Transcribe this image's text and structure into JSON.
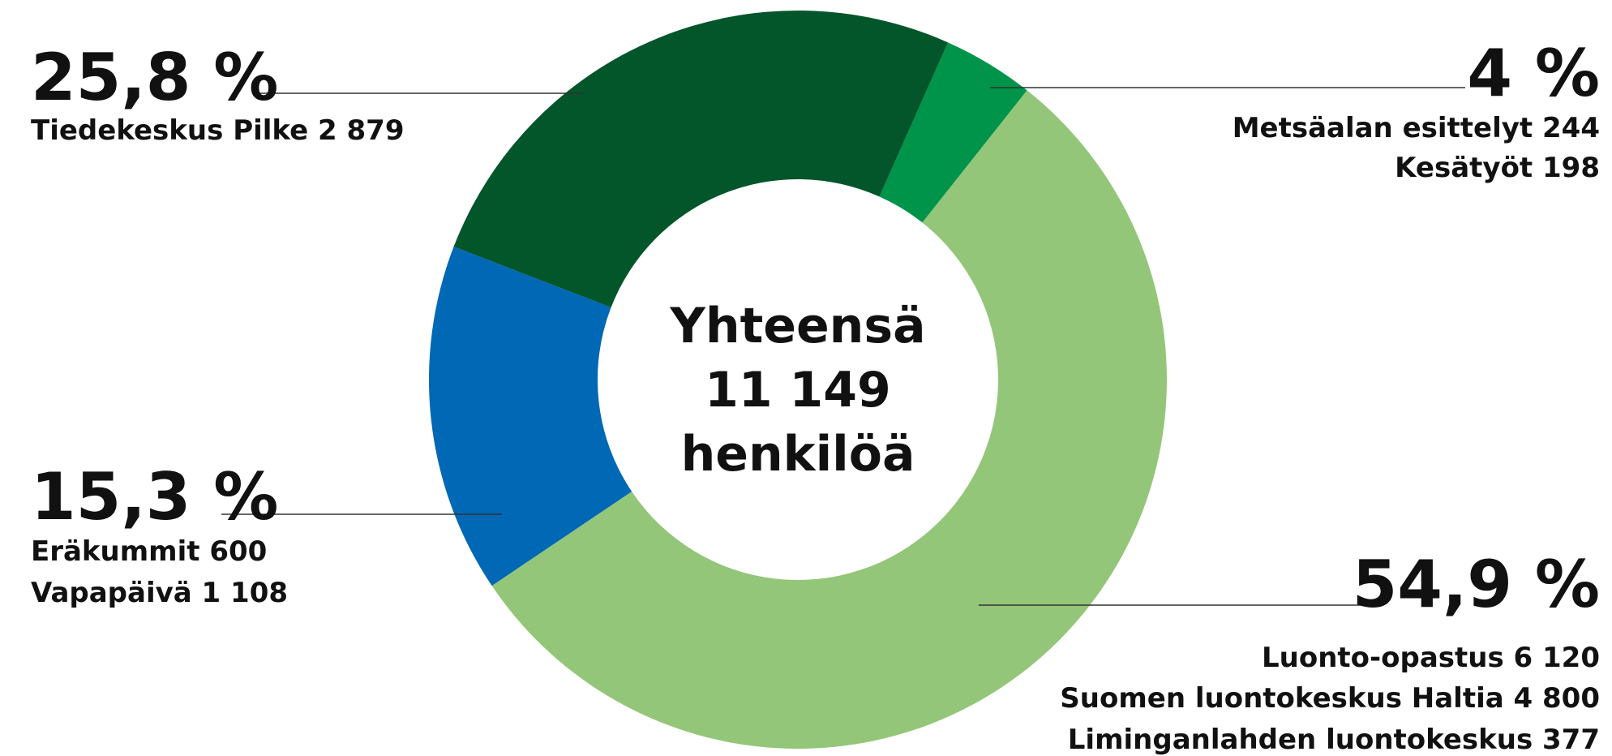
{
  "chart_data": {
    "type": "donut",
    "values": [
      4,
      54.9,
      15.3,
      25.8
    ],
    "value_labels": [
      "4 %",
      "54,9 %",
      "15,3 %",
      "25,8 %"
    ],
    "colors": [
      "#00934a",
      "#94c679",
      "#0068b4",
      "#03552a"
    ],
    "details": [
      [
        "Metsäalan esittelyt 244",
        "Kesätyöt 198"
      ],
      [
        "Luonto-opastus 6 120",
        "Suomen luontokeskus Haltia 4 800",
        "Liminganlahden luontokeskus 377"
      ],
      [
        "Eräkummit  600",
        "Vapapäivä 1 108"
      ],
      [
        "Tiedekeskus Pilke 2 879"
      ]
    ],
    "center_text": [
      "Yhteensä",
      "11 149",
      "henkilöä"
    ]
  }
}
